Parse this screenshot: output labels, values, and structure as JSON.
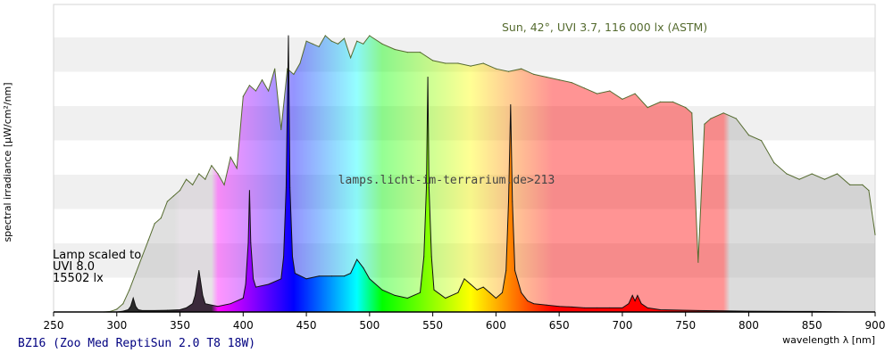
{
  "chart_data": {
    "type": "area",
    "ylabel": "spectral irradiance [µW/cm²/nm]",
    "xlabel": "wavelength λ [nm]",
    "xlim": [
      250,
      900
    ],
    "x_ticks": [
      250,
      300,
      350,
      400,
      450,
      500,
      550,
      600,
      650,
      700,
      750,
      800,
      850,
      900
    ],
    "y_ticks_shown": false,
    "grid": "horizontal bands",
    "watermark": "lamps.licht-im-terrarium.de>213",
    "footer_title": "BZ16 (Zoo Med ReptiSun 2.0 T8 18W)",
    "series": [
      {
        "name": "Sun, 42°, UVI 3.7, 116 000 lx (ASTM)",
        "style": "filled-spectrum",
        "x": [
          290,
          295,
          300,
          305,
          310,
          315,
          320,
          325,
          330,
          335,
          340,
          345,
          350,
          355,
          360,
          365,
          370,
          375,
          380,
          385,
          390,
          395,
          400,
          405,
          410,
          415,
          420,
          425,
          430,
          435,
          440,
          445,
          450,
          455,
          460,
          465,
          470,
          475,
          480,
          485,
          490,
          495,
          500,
          510,
          520,
          530,
          540,
          550,
          560,
          570,
          580,
          590,
          600,
          610,
          620,
          630,
          640,
          650,
          660,
          670,
          680,
          690,
          700,
          710,
          720,
          730,
          740,
          750,
          755,
          760,
          765,
          770,
          780,
          790,
          800,
          810,
          820,
          830,
          840,
          850,
          860,
          870,
          880,
          890,
          895,
          900
        ],
        "y": [
          0,
          0.2,
          1,
          3,
          8,
          14,
          20,
          26,
          32,
          34,
          40,
          42,
          44,
          48,
          46,
          50,
          48,
          53,
          50,
          46,
          56,
          52,
          78,
          82,
          80,
          84,
          80,
          88,
          66,
          88,
          86,
          90,
          98,
          97,
          96,
          100,
          98,
          97,
          99,
          92,
          98,
          97,
          100,
          97,
          95,
          94,
          94,
          91,
          90,
          90,
          89,
          90,
          88,
          87,
          88,
          86,
          85,
          84,
          83,
          81,
          79,
          80,
          77,
          79,
          74,
          76,
          76,
          74,
          72,
          18,
          68,
          70,
          72,
          70,
          64,
          62,
          54,
          50,
          48,
          50,
          48,
          50,
          46,
          46,
          44,
          28
        ]
      },
      {
        "name": "Lamp scaled to\nUVI 8.0\n15502 lx",
        "style": "filled-spectrum-dark-outline",
        "x": [
          300,
          305,
          309,
          311,
          313,
          315,
          317,
          320,
          330,
          340,
          350,
          355,
          360,
          362,
          364,
          365,
          366,
          368,
          370,
          380,
          390,
          400,
          402,
          404,
          405,
          406,
          408,
          410,
          420,
          430,
          432,
          434,
          435.8,
          437,
          439,
          441,
          450,
          460,
          470,
          480,
          485,
          488,
          490,
          495,
          500,
          510,
          520,
          530,
          540,
          543,
          545,
          546.1,
          547,
          549,
          551,
          560,
          570,
          575,
          580,
          585,
          590,
          595,
          600,
          605,
          608,
          610,
          611.6,
          613,
          615,
          620,
          625,
          630,
          640,
          650,
          660,
          670,
          680,
          690,
          700,
          705,
          708,
          710,
          712,
          715,
          720,
          730,
          760,
          800,
          850,
          880
        ],
        "y": [
          0,
          0.3,
          0.8,
          2,
          5,
          2,
          0.8,
          0.5,
          0.5,
          0.6,
          0.8,
          1.5,
          3,
          6,
          12,
          15,
          12,
          6,
          3,
          2,
          3,
          5,
          10,
          25,
          44,
          25,
          12,
          9,
          10,
          12,
          20,
          45,
          100,
          45,
          20,
          14,
          12,
          13,
          13,
          13,
          14,
          17,
          19,
          16,
          12,
          8,
          6,
          5,
          7,
          20,
          45,
          85,
          45,
          20,
          8,
          5,
          7,
          12,
          10,
          8,
          9,
          7,
          5,
          7,
          15,
          40,
          75,
          40,
          15,
          7,
          4,
          3,
          2.5,
          2,
          1.8,
          1.5,
          1.5,
          1.5,
          1.5,
          3,
          6,
          4,
          6,
          3,
          1.5,
          0.8,
          0.5,
          0.3,
          0.2,
          0
        ]
      }
    ]
  }
}
